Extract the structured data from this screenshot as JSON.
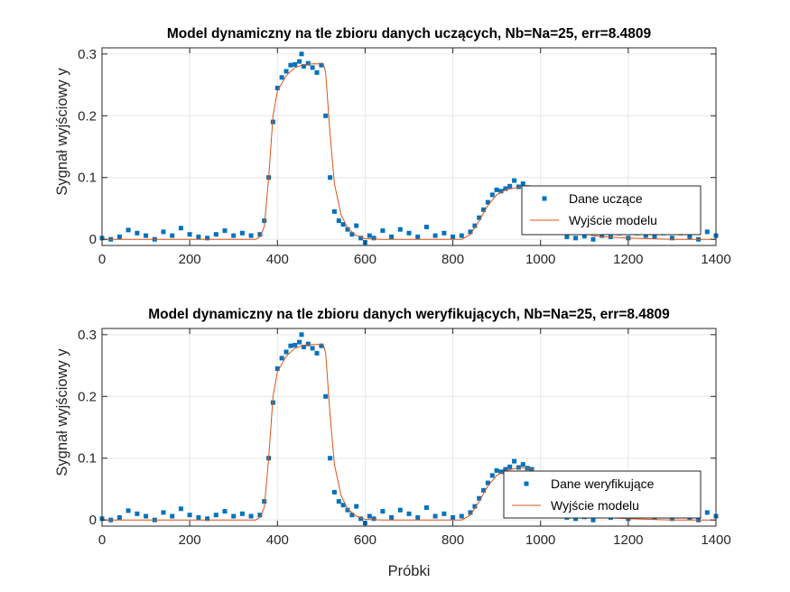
{
  "chart_data": [
    {
      "type": "scatter",
      "title": "Model dynamiczny na tle zbioru danych uczących, Nb=Na=25, err=8.4809",
      "xlabel": "",
      "ylabel": "Sygnał wyjściowy y",
      "xlim": [
        0,
        1400
      ],
      "ylim": [
        -0.01,
        0.31
      ],
      "xticks": [
        0,
        200,
        400,
        600,
        800,
        1000,
        1200,
        1400
      ],
      "xtick_labels": [
        "0",
        "200",
        "400",
        "600",
        "800",
        "1000",
        "1200",
        "1400"
      ],
      "yticks": [
        0,
        0.1,
        0.2,
        0.3
      ],
      "ytick_labels": [
        "0",
        "0.1",
        "0.2",
        "0.3"
      ],
      "grid": true,
      "legend_position": "lower-right",
      "series": [
        {
          "name": "Dane uczące",
          "kind": "markers",
          "color": "#0072BD",
          "x": [
            0,
            20,
            40,
            60,
            80,
            100,
            120,
            140,
            160,
            180,
            200,
            220,
            240,
            260,
            280,
            300,
            320,
            340,
            360,
            370,
            380,
            390,
            400,
            410,
            420,
            430,
            440,
            450,
            455,
            460,
            470,
            480,
            490,
            500,
            510,
            520,
            530,
            540,
            550,
            560,
            570,
            580,
            590,
            600,
            610,
            620,
            640,
            660,
            680,
            700,
            720,
            740,
            760,
            780,
            800,
            820,
            840,
            850,
            860,
            870,
            880,
            890,
            900,
            910,
            920,
            930,
            940,
            950,
            960,
            970,
            980,
            990,
            1000,
            1020,
            1040,
            1060,
            1080,
            1100,
            1120,
            1140,
            1160,
            1180,
            1200,
            1220,
            1240,
            1260,
            1280,
            1300,
            1320,
            1340,
            1360,
            1380,
            1400
          ],
          "y": [
            0.002,
            0.0,
            0.004,
            0.015,
            0.01,
            0.006,
            0.0,
            0.012,
            0.006,
            0.018,
            0.008,
            0.004,
            0.002,
            0.008,
            0.014,
            0.006,
            0.01,
            0.006,
            0.008,
            0.03,
            0.1,
            0.19,
            0.245,
            0.262,
            0.272,
            0.282,
            0.283,
            0.288,
            0.3,
            0.28,
            0.285,
            0.278,
            0.27,
            0.282,
            0.2,
            0.1,
            0.045,
            0.03,
            0.024,
            0.016,
            0.008,
            0.022,
            0.002,
            -0.005,
            0.006,
            0.002,
            0.014,
            0.004,
            0.016,
            0.01,
            0.004,
            0.02,
            0.006,
            0.01,
            0.004,
            0.006,
            0.012,
            0.022,
            0.035,
            0.048,
            0.06,
            0.072,
            0.08,
            0.078,
            0.082,
            0.086,
            0.095,
            0.085,
            0.09,
            0.084,
            0.082,
            0.06,
            0.04,
            0.02,
            0.012,
            0.004,
            0.002,
            0.005,
            0.0,
            0.006,
            0.004,
            0.01,
            0.002,
            0.01,
            0.006,
            0.004,
            0.01,
            0.002,
            0.01,
            0.004,
            0.0,
            0.012,
            0.006
          ]
        },
        {
          "name": "Wyjście modelu",
          "kind": "line",
          "color": "#D95319",
          "x": [
            0,
            350,
            360,
            370,
            380,
            390,
            400,
            420,
            440,
            460,
            480,
            500,
            505,
            510,
            520,
            530,
            545,
            560,
            580,
            600,
            640,
            700,
            760,
            820,
            840,
            860,
            880,
            900,
            920,
            940,
            960,
            980,
            1000,
            1020,
            1040,
            1060,
            1080,
            1100,
            1120,
            1140,
            1200,
            1300,
            1400
          ],
          "y": [
            0.0,
            0.0,
            0.004,
            0.02,
            0.1,
            0.2,
            0.24,
            0.265,
            0.278,
            0.283,
            0.284,
            0.284,
            0.283,
            0.27,
            0.17,
            0.09,
            0.04,
            0.018,
            0.006,
            0.001,
            0.0,
            0.0,
            0.0,
            0.0,
            0.008,
            0.03,
            0.055,
            0.072,
            0.08,
            0.083,
            0.085,
            0.082,
            0.07,
            0.05,
            0.035,
            0.024,
            0.016,
            0.01,
            0.006,
            0.004,
            0.002,
            0.0,
            0.0
          ]
        }
      ]
    },
    {
      "type": "scatter",
      "title": "Model dynamiczny na tle zbioru danych weryfikujących, Nb=Na=25, err=8.4809",
      "xlabel": "Próbki",
      "ylabel": "Sygnał wyjściowy y",
      "xlim": [
        0,
        1400
      ],
      "ylim": [
        -0.01,
        0.31
      ],
      "xticks": [
        0,
        200,
        400,
        600,
        800,
        1000,
        1200,
        1400
      ],
      "xtick_labels": [
        "0",
        "200",
        "400",
        "600",
        "800",
        "1000",
        "1200",
        "1400"
      ],
      "yticks": [
        0,
        0.1,
        0.2,
        0.3
      ],
      "ytick_labels": [
        "0",
        "0.1",
        "0.2",
        "0.3"
      ],
      "grid": true,
      "legend_position": "lower-right",
      "series": [
        {
          "name": "Dane weryfikujące",
          "kind": "markers",
          "color": "#0072BD",
          "x": [
            0,
            20,
            40,
            60,
            80,
            100,
            120,
            140,
            160,
            180,
            200,
            220,
            240,
            260,
            280,
            300,
            320,
            340,
            360,
            370,
            380,
            390,
            400,
            410,
            420,
            430,
            440,
            450,
            455,
            460,
            470,
            480,
            490,
            500,
            510,
            520,
            530,
            540,
            550,
            560,
            570,
            580,
            590,
            600,
            610,
            620,
            640,
            660,
            680,
            700,
            720,
            740,
            760,
            780,
            800,
            820,
            840,
            850,
            860,
            870,
            880,
            890,
            900,
            910,
            920,
            930,
            940,
            950,
            960,
            970,
            980,
            990,
            1000,
            1020,
            1040,
            1060,
            1080,
            1100,
            1120,
            1140,
            1160,
            1180,
            1200,
            1220,
            1240,
            1260,
            1280,
            1300,
            1320,
            1340,
            1360,
            1380,
            1400
          ],
          "y": [
            0.002,
            0.0,
            0.004,
            0.015,
            0.01,
            0.006,
            0.0,
            0.012,
            0.006,
            0.018,
            0.008,
            0.004,
            0.002,
            0.008,
            0.014,
            0.006,
            0.01,
            0.006,
            0.008,
            0.03,
            0.1,
            0.19,
            0.245,
            0.262,
            0.272,
            0.282,
            0.283,
            0.288,
            0.3,
            0.28,
            0.285,
            0.278,
            0.27,
            0.282,
            0.2,
            0.1,
            0.045,
            0.03,
            0.024,
            0.016,
            0.008,
            0.022,
            0.002,
            -0.005,
            0.006,
            0.002,
            0.014,
            0.004,
            0.016,
            0.01,
            0.004,
            0.02,
            0.006,
            0.01,
            0.004,
            0.006,
            0.012,
            0.022,
            0.035,
            0.048,
            0.06,
            0.072,
            0.08,
            0.078,
            0.082,
            0.086,
            0.095,
            0.085,
            0.09,
            0.084,
            0.082,
            0.06,
            0.04,
            0.02,
            0.012,
            0.004,
            0.002,
            0.005,
            0.0,
            0.006,
            0.004,
            0.01,
            0.002,
            0.01,
            0.006,
            0.004,
            0.01,
            0.002,
            0.01,
            0.004,
            0.0,
            0.012,
            0.006
          ]
        },
        {
          "name": "Wyjście modelu",
          "kind": "line",
          "color": "#D95319",
          "x": [
            0,
            350,
            360,
            370,
            380,
            390,
            400,
            420,
            440,
            460,
            480,
            500,
            505,
            510,
            520,
            530,
            545,
            560,
            580,
            600,
            640,
            700,
            760,
            820,
            840,
            860,
            880,
            900,
            920,
            940,
            960,
            980,
            1000,
            1020,
            1040,
            1060,
            1080,
            1100,
            1120,
            1140,
            1200,
            1300,
            1400
          ],
          "y": [
            0.0,
            0.0,
            0.004,
            0.02,
            0.1,
            0.2,
            0.24,
            0.265,
            0.278,
            0.283,
            0.284,
            0.284,
            0.283,
            0.27,
            0.17,
            0.09,
            0.04,
            0.018,
            0.006,
            0.001,
            0.0,
            0.0,
            0.0,
            0.0,
            0.008,
            0.03,
            0.055,
            0.072,
            0.08,
            0.083,
            0.085,
            0.082,
            0.07,
            0.05,
            0.035,
            0.024,
            0.016,
            0.01,
            0.006,
            0.004,
            0.002,
            0.0,
            0.0
          ]
        }
      ]
    }
  ]
}
